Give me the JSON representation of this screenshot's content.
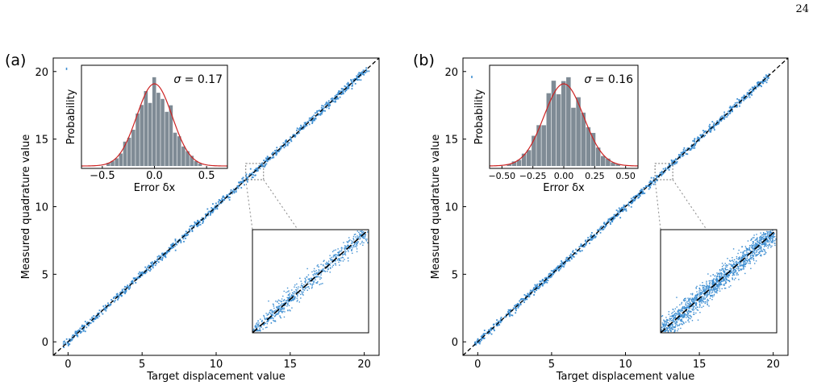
{
  "page_number": "24",
  "colors": {
    "points": "#3f8fd2",
    "diag": "#000000",
    "hist": "#7f8b95",
    "gauss": "#cc2222"
  },
  "chart_data": [
    {
      "type": "scatter",
      "panel_label": "(a)",
      "xlabel": "Target displacement value",
      "ylabel": "Measured quadrature value",
      "xlim": [
        -1,
        21
      ],
      "ylim": [
        -1,
        21
      ],
      "xticks": [
        0,
        5,
        10,
        15,
        20
      ],
      "yticks": [
        0,
        5,
        10,
        15,
        20
      ],
      "noise_sigma": 0.17,
      "outlier": [
        -0.1,
        20.2
      ],
      "inset_hist": {
        "type": "bar",
        "xlabel": "Error δx",
        "ylabel": "Probability",
        "annotation_value": "0.17",
        "xlim": [
          -0.7,
          0.7
        ],
        "xticks": [
          -0.5,
          0,
          0.5
        ],
        "xtick_labels": [
          "−0.5",
          "0.0",
          "0.5"
        ],
        "sigma": 0.17
      },
      "zoom_region": {
        "x": [
          12,
          13.2
        ],
        "y": [
          12,
          13.2
        ]
      }
    },
    {
      "type": "scatter",
      "panel_label": "(b)",
      "xlabel": "Target displacement value",
      "ylabel": "Measured quadrature value",
      "xlim": [
        -1,
        21
      ],
      "ylim": [
        -1,
        21
      ],
      "xticks": [
        0,
        5,
        10,
        15,
        20
      ],
      "yticks": [
        0,
        5,
        10,
        15,
        20
      ],
      "noise_sigma": 0.16,
      "outlier": [
        -0.4,
        19.6
      ],
      "inset_hist": {
        "type": "bar",
        "xlabel": "Error δx",
        "ylabel": "Probability",
        "annotation_value": "0.16",
        "xlim": [
          -0.6,
          0.6
        ],
        "xticks": [
          -0.5,
          -0.25,
          0,
          0.25,
          0.5
        ],
        "xtick_labels": [
          "−0.50",
          "−0.25",
          "0.00",
          "0.25",
          "0.50"
        ],
        "sigma": 0.16
      },
      "zoom_region": {
        "x": [
          12,
          13.2
        ],
        "y": [
          12,
          13.2
        ]
      }
    }
  ]
}
